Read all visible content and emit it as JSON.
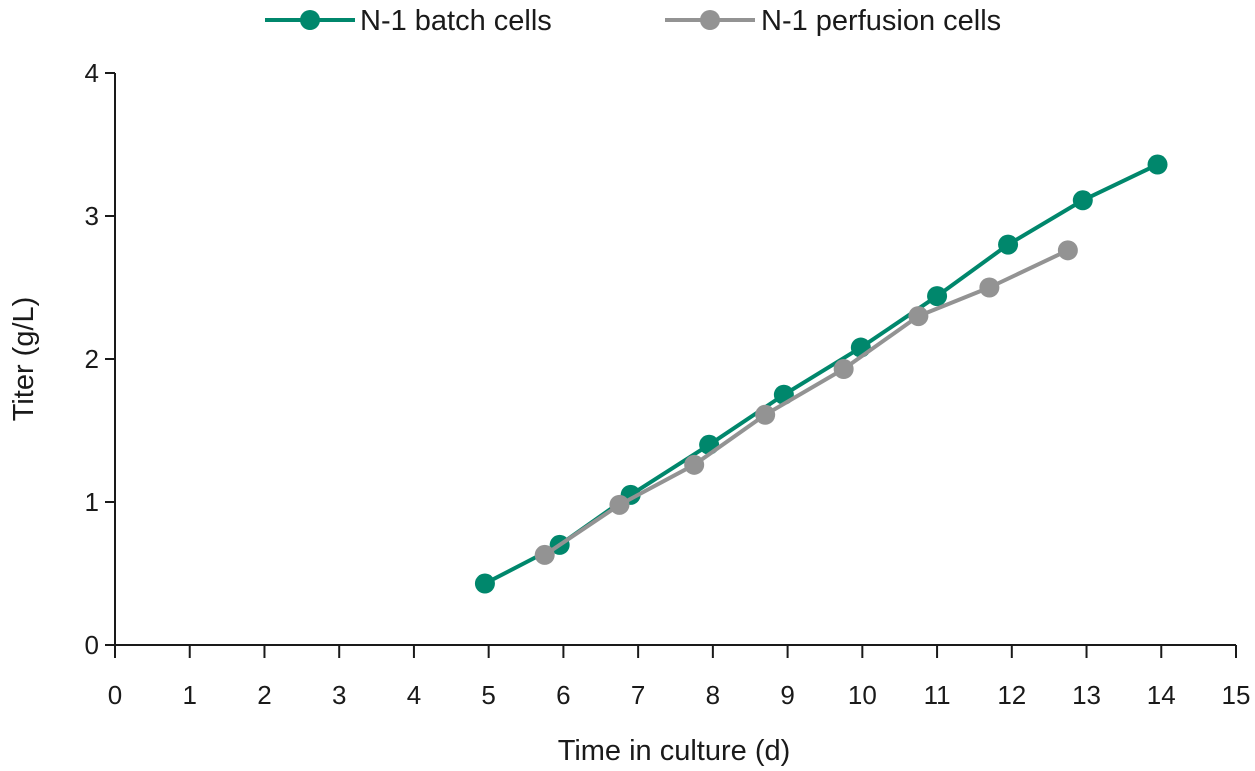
{
  "chart_data": {
    "type": "line",
    "title": "",
    "xlabel": "Time in culture (d)",
    "ylabel": "Titer (g/L)",
    "xlim": [
      0,
      15
    ],
    "ylim": [
      0,
      4
    ],
    "x_ticks": [
      "0",
      "1",
      "2",
      "3",
      "4",
      "5",
      "6",
      "7",
      "8",
      "9",
      "10",
      "11",
      "12",
      "13",
      "14",
      "15"
    ],
    "y_ticks": [
      "0",
      "1",
      "2",
      "3",
      "4"
    ],
    "grid": false,
    "legend_position": "top",
    "series": [
      {
        "name": "N-1 batch cells",
        "color": "#00876c",
        "marker": "circle",
        "points": [
          {
            "x": 4.95,
            "y": 0.43
          },
          {
            "x": 5.95,
            "y": 0.7
          },
          {
            "x": 6.9,
            "y": 1.05
          },
          {
            "x": 7.95,
            "y": 1.4
          },
          {
            "x": 8.95,
            "y": 1.75
          },
          {
            "x": 9.98,
            "y": 2.08
          },
          {
            "x": 11.0,
            "y": 2.44
          },
          {
            "x": 11.95,
            "y": 2.8
          },
          {
            "x": 12.95,
            "y": 3.11
          },
          {
            "x": 13.95,
            "y": 3.36
          }
        ]
      },
      {
        "name": "N-1 perfusion cells",
        "color": "#939393",
        "marker": "circle",
        "points": [
          {
            "x": 5.75,
            "y": 0.63
          },
          {
            "x": 6.75,
            "y": 0.98
          },
          {
            "x": 7.75,
            "y": 1.26
          },
          {
            "x": 8.7,
            "y": 1.61
          },
          {
            "x": 9.75,
            "y": 1.93
          },
          {
            "x": 10.75,
            "y": 2.3
          },
          {
            "x": 11.7,
            "y": 2.5
          },
          {
            "x": 12.75,
            "y": 2.76
          }
        ]
      }
    ]
  }
}
